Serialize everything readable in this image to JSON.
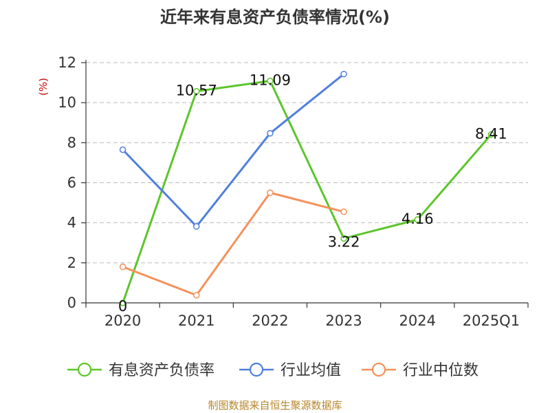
{
  "chart_data": {
    "type": "line",
    "title": "近年来有息资产负债率情况(%)",
    "y_unit": "(%)",
    "categories": [
      "2020",
      "2021",
      "2022",
      "2023",
      "2024",
      "2025Q1"
    ],
    "ylim": [
      0,
      12
    ],
    "yticks": [
      0,
      2,
      4,
      6,
      8,
      10,
      12
    ],
    "grid": true,
    "legend_position": "bottom",
    "series": [
      {
        "name": "有息资产负债率",
        "color": "#5cc52a",
        "values": [
          0,
          10.57,
          11.09,
          3.22,
          4.16,
          8.41
        ],
        "labels": [
          "0",
          "10.57",
          "11.09",
          "3.22",
          "4.16",
          "8.41"
        ]
      },
      {
        "name": "行业均值",
        "color": "#4f7fdc",
        "values": [
          7.65,
          3.82,
          8.47,
          11.43,
          null,
          null
        ]
      },
      {
        "name": "行业中位数",
        "color": "#f5915a",
        "values": [
          1.8,
          0.38,
          5.5,
          4.55,
          null,
          null
        ]
      }
    ]
  },
  "source": "制图数据来自恒生聚源数据库"
}
